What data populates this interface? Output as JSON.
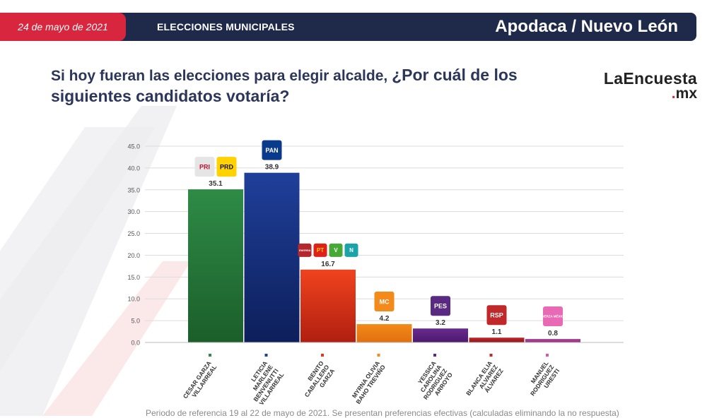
{
  "header": {
    "date": "24 de mayo de 2021",
    "title": "ELECCIONES MUNICIPALES",
    "location": "Apodaca / Nuevo León"
  },
  "question": {
    "intro": "Si hoy fueran las elecciones para elegir alcalde, ",
    "main": "¿Por cuál de los siguientes candidatos votaría?"
  },
  "brand": {
    "name": "LaEncuesta",
    "dot": ".",
    "tld": "mx"
  },
  "footnote": "Periodo de referencia 19 al 22 de mayo de 2021. Se presentan preferencias efectivas (calculadas eliminando la no respuesta)",
  "colors": {
    "header_bg": "#1f2a4a",
    "accent_red": "#d7263d",
    "grid": "#dcdcdc"
  },
  "chart_data": {
    "type": "bar",
    "ylim": [
      0,
      45
    ],
    "yticks": [
      "0.0",
      "5.0",
      "10.0",
      "15.0",
      "20.0",
      "25.0",
      "30.0",
      "35.0",
      "40.0",
      "45.0"
    ],
    "grid": true,
    "categories": [
      [
        "CESAR GARZA",
        "VILLARREAL"
      ],
      [
        "LETICIA",
        "MARLENE",
        "BENVENUTTI",
        "VILLARREAL"
      ],
      [
        "BENITO",
        "CABALLERO",
        "GARZA"
      ],
      [
        "MYRNA OLIVIA",
        "BAHO TREVIÑO"
      ],
      [
        "YESSICA",
        "CAROLINA",
        "RODRIGUEZ",
        "ARROYO"
      ],
      [
        "BLANCA ELIA",
        "ALVAREZ",
        "ÁLVAREZ"
      ],
      [
        "MANUEL",
        "RODRIGUEZ",
        "URESTI"
      ]
    ],
    "values": [
      35.1,
      38.9,
      16.7,
      4.2,
      3.2,
      1.1,
      0.8
    ],
    "value_labels": [
      "35.1",
      "38.9",
      "16.7",
      "4.2",
      "3.2",
      "1.1",
      "0.8"
    ],
    "bar_colors": [
      [
        "#2e8b46",
        "#1b5e2a"
      ],
      [
        "#1f3f9a",
        "#0d1f5a"
      ],
      [
        "#f0431e",
        "#b01f10"
      ],
      [
        "#f38a1a",
        "#e07010"
      ],
      [
        "#6a2a91",
        "#4a1a6b"
      ],
      [
        "#c0282a",
        "#8a1518"
      ],
      [
        "#b2459c",
        "#8c2e79"
      ]
    ],
    "marker_colors": [
      "#2e8b46",
      "#1f3f9a",
      "#e8361a",
      "#f38a1a",
      "#5a2a82",
      "#c0282a",
      "#d857a8"
    ],
    "party_logos": [
      [
        {
          "name": "PRI",
          "text": "PRI",
          "bg": "#e5e5e5",
          "fg": "#c8102e"
        },
        {
          "name": "PRD",
          "text": "PRD",
          "bg": "#ffd200",
          "fg": "#111111"
        }
      ],
      [
        {
          "name": "PAN",
          "text": "PAN",
          "bg": "#0a3a8c",
          "fg": "#ffffff"
        }
      ],
      [
        {
          "name": "MORENA",
          "text": "morena",
          "bg": "#b3282d",
          "fg": "#ffffff"
        },
        {
          "name": "PT",
          "text": "PT",
          "bg": "#e0201b",
          "fg": "#ffd200"
        },
        {
          "name": "PVEM",
          "text": "V",
          "bg": "#46a835",
          "fg": "#ffffff"
        },
        {
          "name": "NA",
          "text": "N",
          "bg": "#1aa3a8",
          "fg": "#ffffff"
        }
      ],
      [
        {
          "name": "MC",
          "text": "MC",
          "bg": "#f38a1a",
          "fg": "#ffffff"
        }
      ],
      [
        {
          "name": "PES",
          "text": "PES",
          "bg": "#5a2a82",
          "fg": "#ffffff"
        }
      ],
      [
        {
          "name": "RSP",
          "text": "RSP",
          "bg": "#c0282a",
          "fg": "#ffffff"
        }
      ],
      [
        {
          "name": "FXM",
          "text": "FUERZA MÉXICO",
          "bg": "#e86ab4",
          "fg": "#ffffff"
        }
      ]
    ]
  }
}
